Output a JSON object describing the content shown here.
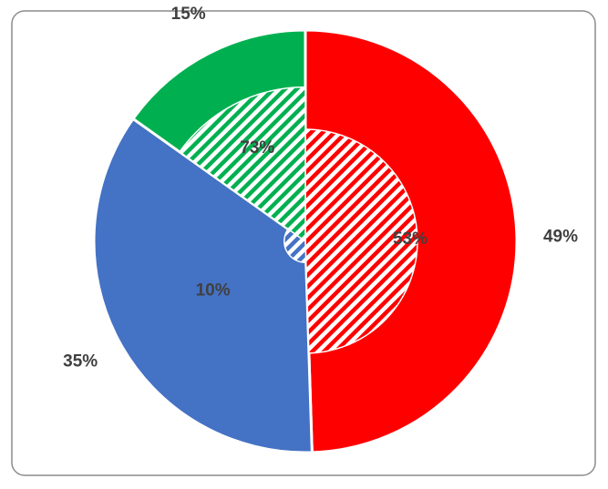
{
  "chart_data": {
    "type": "pie",
    "series": [
      {
        "values": [
          49,
          35,
          15
        ],
        "value_labels": [
          "49%",
          "35%",
          "15%"
        ],
        "colors": [
          "#ff0000",
          "#4472c4",
          "#00b050"
        ]
      },
      {
        "values": [
          53,
          10,
          73
        ],
        "value_labels": [
          "53%",
          "10%",
          "73%"
        ],
        "colors": [
          "#ff0000",
          "#4472c4",
          "#00b050"
        ],
        "pattern": "hatch"
      }
    ]
  }
}
